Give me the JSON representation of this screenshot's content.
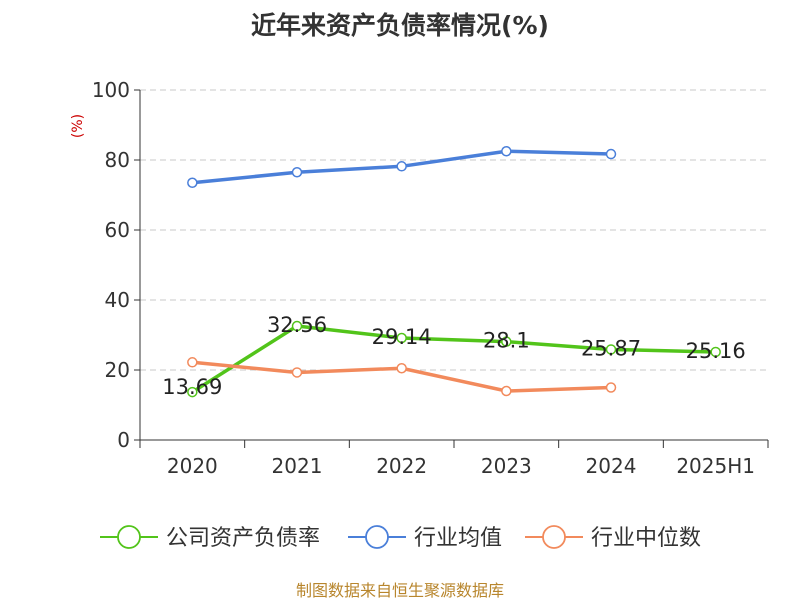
{
  "title": "近年来资产负债率情况(%)",
  "footer": "制图数据来自恒生聚源数据库",
  "chart_data": {
    "type": "line",
    "title": "近年来资产负债率情况(%)",
    "ylabel": "(%)",
    "categories": [
      "2020",
      "2021",
      "2022",
      "2023",
      "2024",
      "2025H1"
    ],
    "ylim": [
      0,
      100
    ],
    "yticks": [
      0,
      20,
      40,
      60,
      80,
      100
    ],
    "grid": true,
    "legend_position": "bottom",
    "series": [
      {
        "name": "公司资产负债率",
        "color": "#52c41a",
        "values": [
          13.69,
          32.56,
          29.14,
          28.1,
          25.87,
          25.16
        ],
        "labels": [
          "13.69",
          "32.56",
          "29.14",
          "28.1",
          "25.87",
          "25.16"
        ]
      },
      {
        "name": "行业均值",
        "color": "#4a7fd9",
        "values": [
          73.5,
          76.5,
          78.2,
          82.5,
          81.7,
          null
        ]
      },
      {
        "name": "行业中位数",
        "color": "#f28a5c",
        "values": [
          22.2,
          19.3,
          20.5,
          14.0,
          15.0,
          null
        ]
      }
    ]
  }
}
